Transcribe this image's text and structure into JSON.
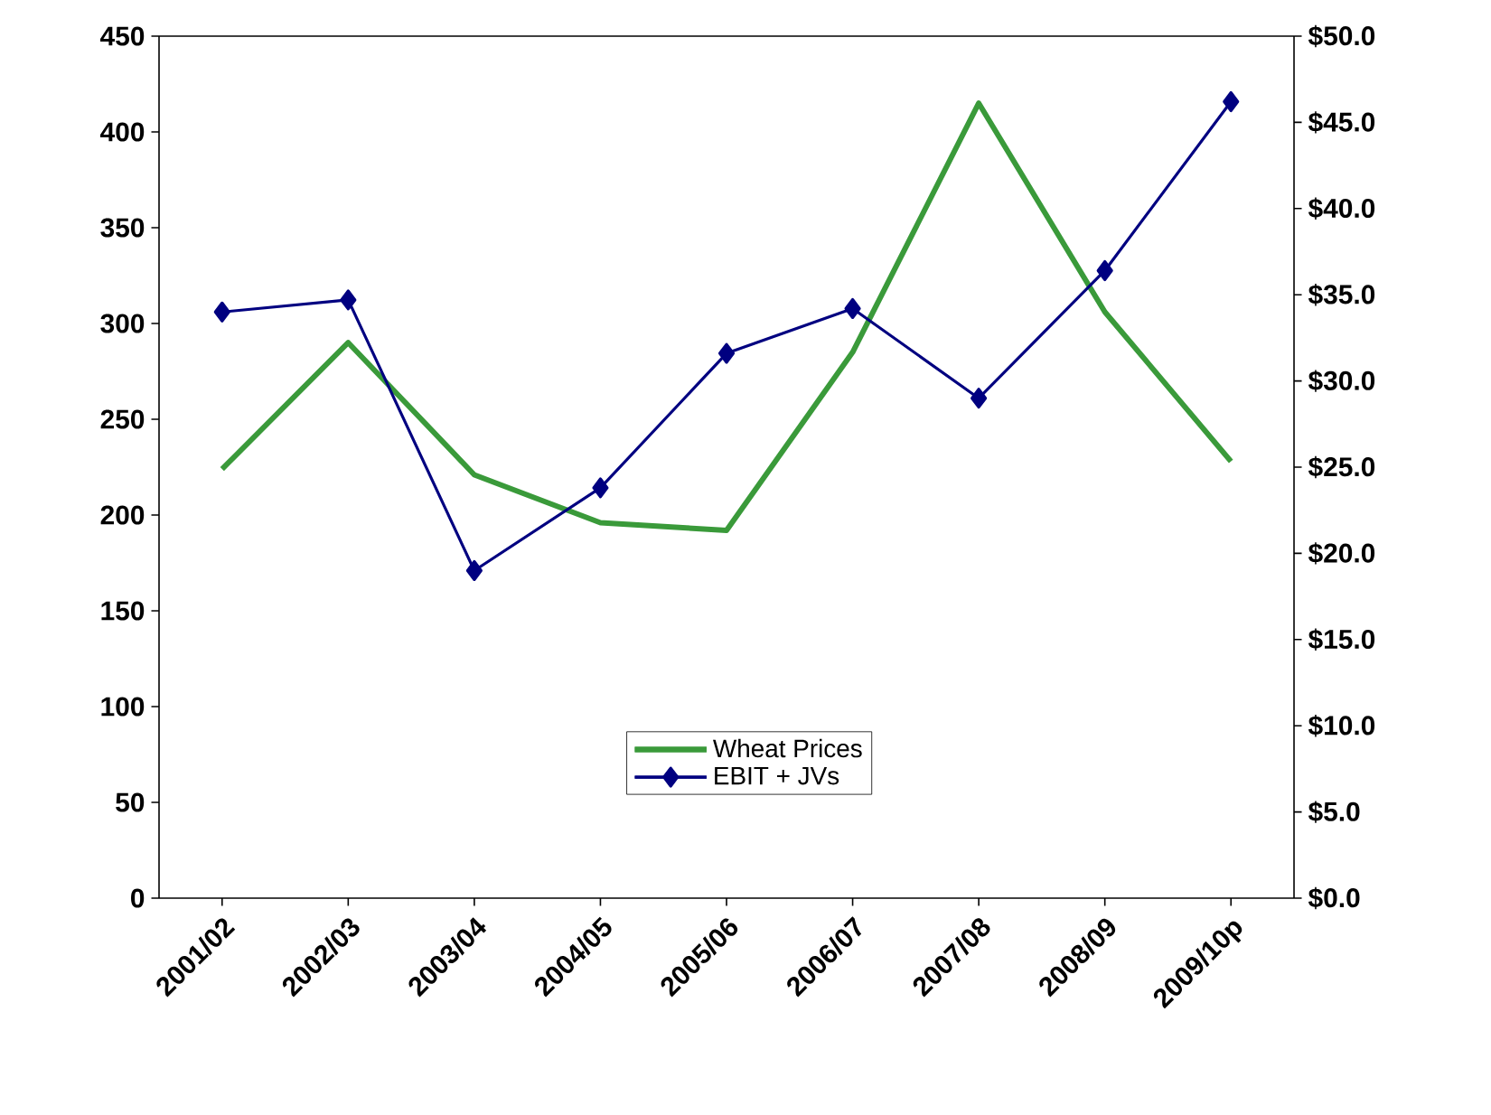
{
  "chart_data": {
    "type": "line",
    "categories": [
      "2001/02",
      "2002/03",
      "2003/04",
      "2004/05",
      "2005/06",
      "2006/07",
      "2007/08",
      "2008/09",
      "2009/10p"
    ],
    "series": [
      {
        "name": "Wheat Prices",
        "color": "#3a9a3a",
        "marker": "none",
        "values": [
          224,
          290,
          221,
          196,
          192,
          285,
          415,
          306,
          228
        ]
      },
      {
        "name": "EBIT + JVs",
        "color": "#000080",
        "marker": "diamond",
        "axis": "y2",
        "values": [
          34.0,
          34.7,
          19.0,
          23.8,
          31.6,
          34.2,
          29.0,
          36.4,
          46.2
        ]
      }
    ],
    "ylim": [
      0,
      450
    ],
    "yticks": [
      0,
      50,
      100,
      150,
      200,
      250,
      300,
      350,
      400,
      450
    ],
    "y2lim": [
      0,
      50
    ],
    "y2ticks": [
      {
        "value": 0,
        "label": "$0.0"
      },
      {
        "value": 5,
        "label": "$5.0"
      },
      {
        "value": 10,
        "label": "$10.0"
      },
      {
        "value": 15,
        "label": "$15.0"
      },
      {
        "value": 20,
        "label": "$20.0"
      },
      {
        "value": 25,
        "label": "$25.0"
      },
      {
        "value": 30,
        "label": "$30.0"
      },
      {
        "value": 35,
        "label": "$35.0"
      },
      {
        "value": 40,
        "label": "$40.0"
      },
      {
        "value": 45,
        "label": "$45.0"
      },
      {
        "value": 50,
        "label": "$50.0"
      }
    ],
    "legend": "bottom",
    "grid": false
  }
}
